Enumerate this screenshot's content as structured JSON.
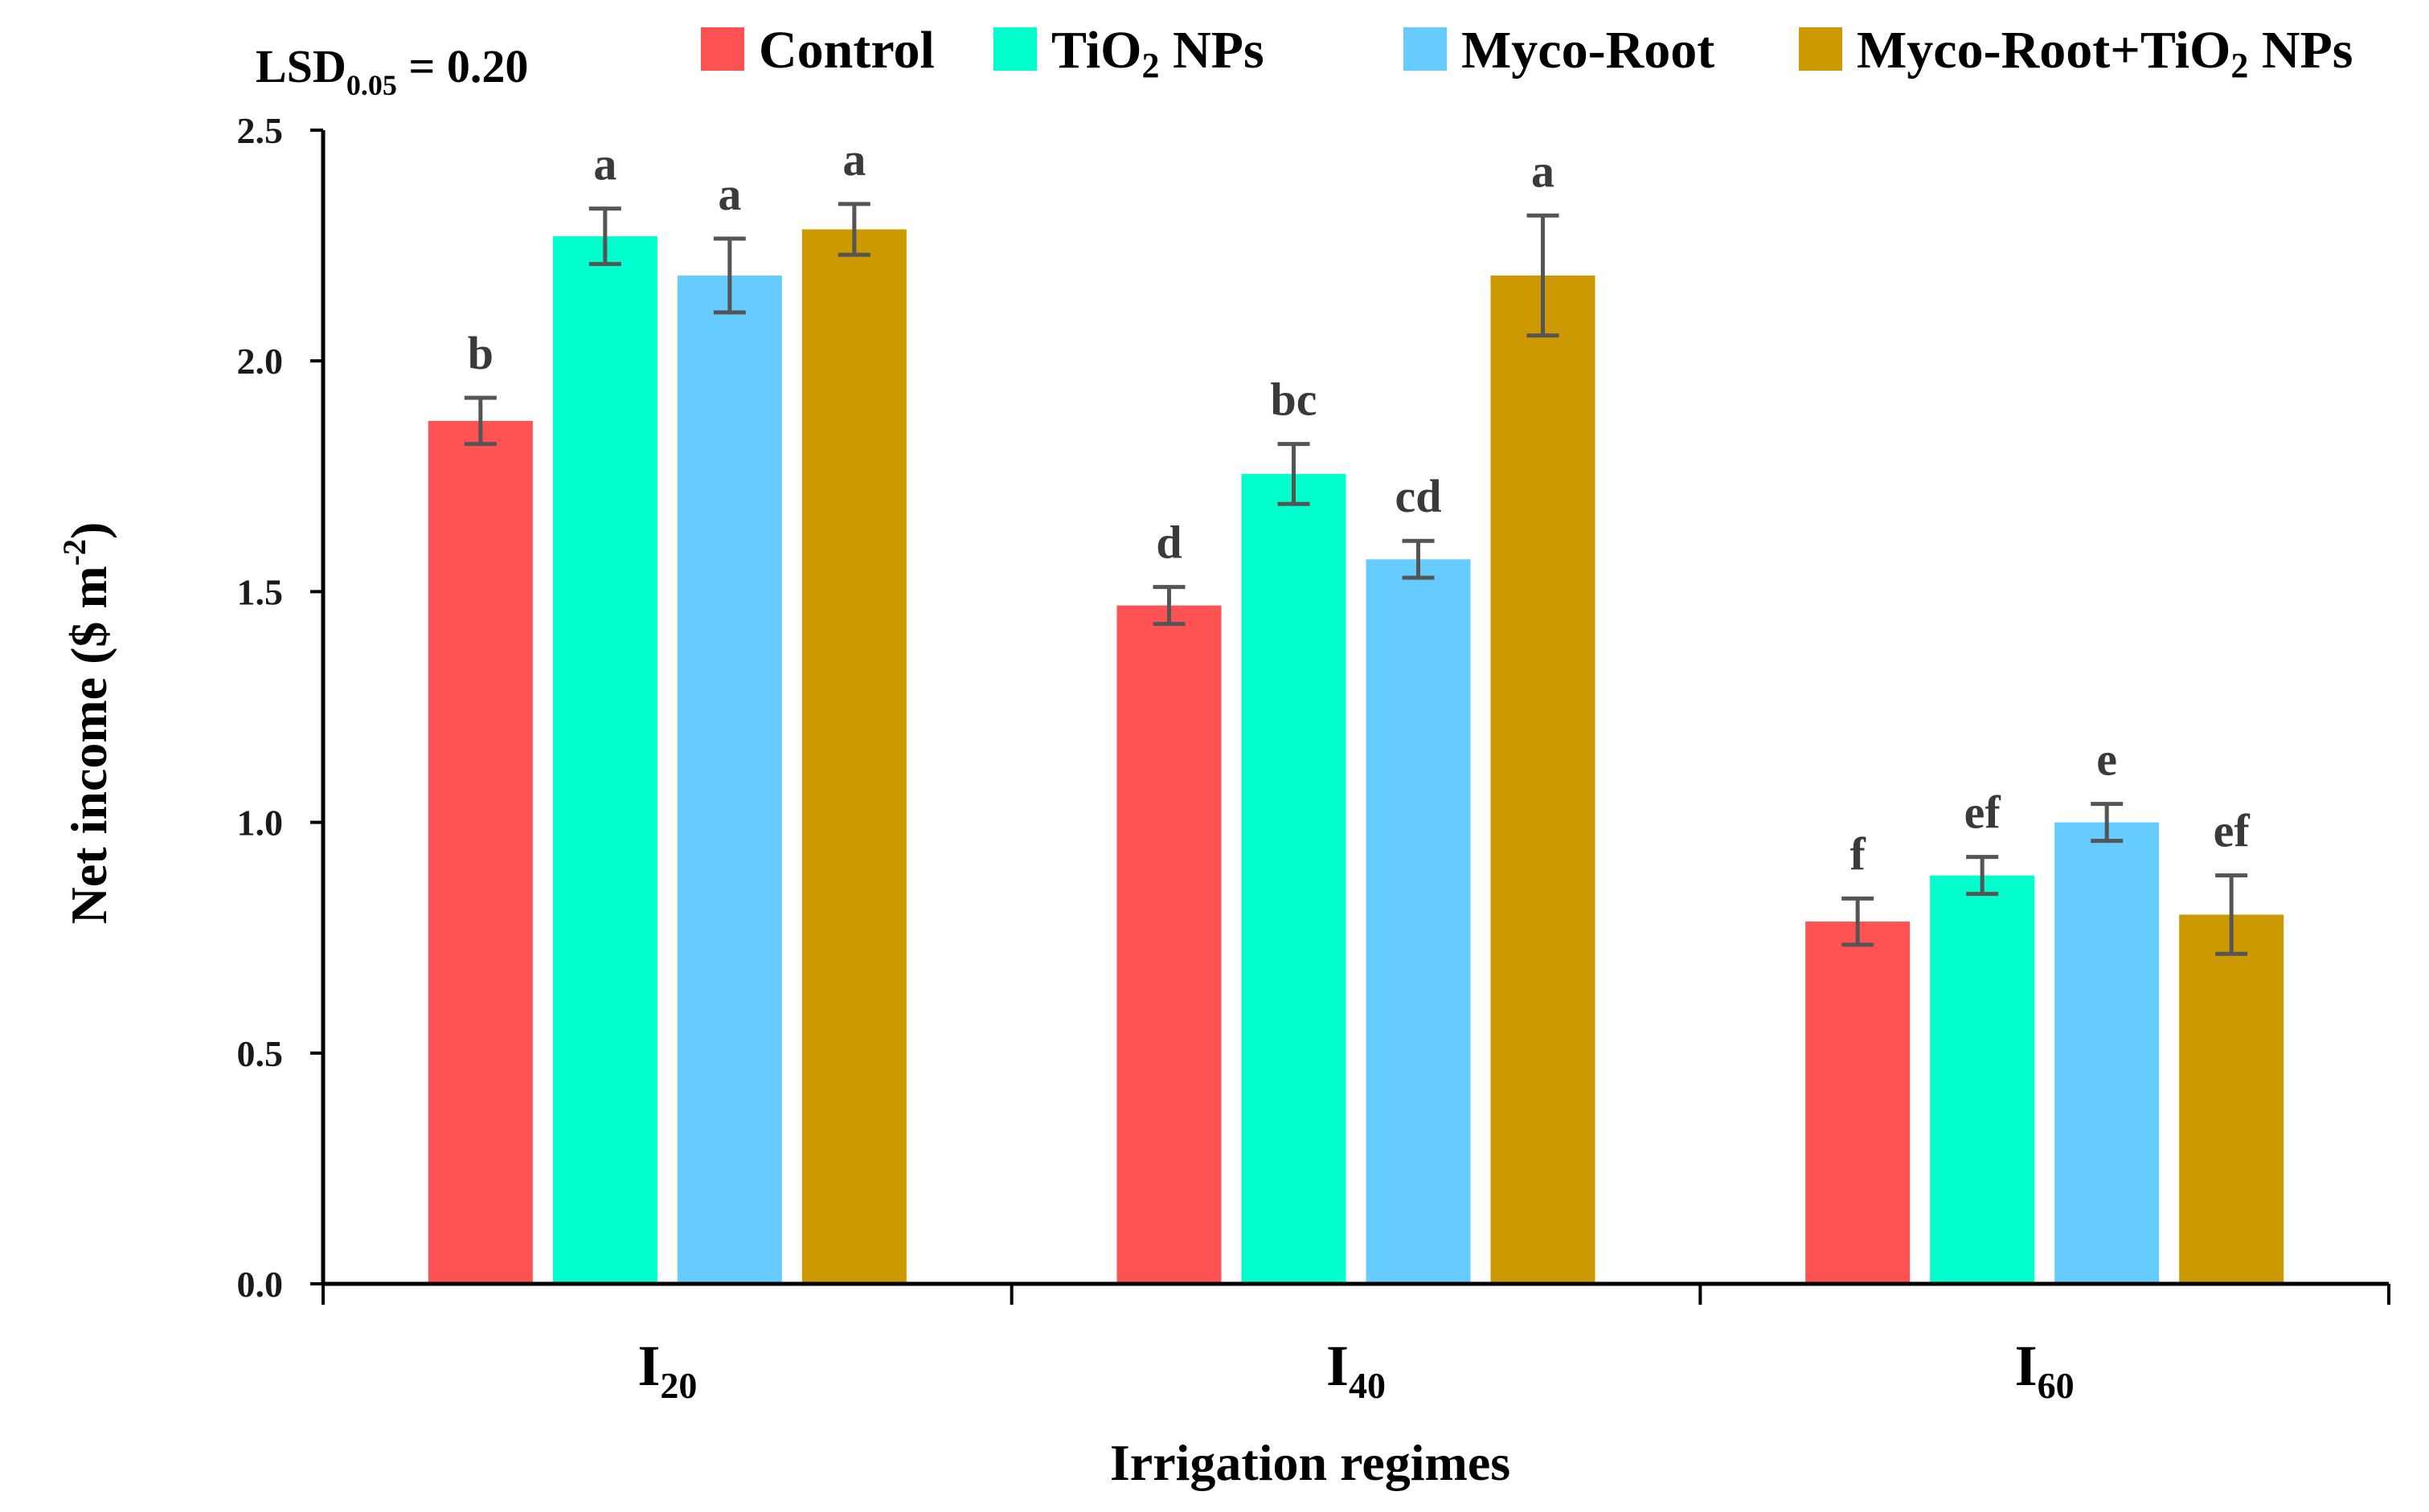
{
  "chart_data": {
    "type": "bar",
    "title": "",
    "xlabel": "Irrigation regimes",
    "ylabel_main": "Net income ($ m",
    "ylabel_sup": "-2",
    "ylabel_close": ")",
    "ylim": [
      0,
      2.5
    ],
    "yticks": [
      0,
      0.5,
      1.0,
      1.5,
      2.0,
      2.5
    ],
    "ytick_labels": [
      "0.0",
      "0.5",
      "1.0",
      "1.5",
      "2.0",
      "2.5"
    ],
    "categories": [
      {
        "main": "I",
        "sub": "20"
      },
      {
        "main": "I",
        "sub": "40"
      },
      {
        "main": "I",
        "sub": "60"
      }
    ],
    "annotation": {
      "main": "LSD",
      "sub": "0.05",
      "rest": " = 0.20"
    },
    "series": [
      {
        "name": "Control",
        "legend_main": "Control",
        "legend_sub": "",
        "legend_rest": "",
        "color": "#ff5252",
        "values": [
          1.87,
          1.47,
          0.785
        ],
        "errors": [
          0.05,
          0.04,
          0.05
        ],
        "letters": [
          "b",
          "d",
          "f"
        ]
      },
      {
        "name": "TiO2 NPs",
        "legend_main": "TiO",
        "legend_sub": "2",
        "legend_rest": " NPs",
        "color": "#00ffcc",
        "values": [
          2.27,
          1.755,
          0.885
        ],
        "errors": [
          0.06,
          0.065,
          0.04
        ],
        "letters": [
          "a",
          "bc",
          "ef"
        ]
      },
      {
        "name": "Myco-Root",
        "legend_main": "Myco-Root",
        "legend_sub": "",
        "legend_rest": "",
        "color": "#66ccff",
        "values": [
          2.185,
          1.57,
          1.0
        ],
        "errors": [
          0.08,
          0.04,
          0.04
        ],
        "letters": [
          "a",
          "cd",
          "e"
        ]
      },
      {
        "name": "Myco-Root+TiO2 NPs",
        "legend_main": "Myco-Root+TiO",
        "legend_sub": "2",
        "legend_rest": " NPs",
        "color": "#cc9900",
        "values": [
          2.285,
          2.185,
          0.8
        ],
        "errors": [
          0.055,
          0.13,
          0.085
        ],
        "letters": [
          "a",
          "a",
          "ef"
        ]
      }
    ],
    "error_bar_color": "#555555",
    "grid": false,
    "legend_position": "top"
  }
}
